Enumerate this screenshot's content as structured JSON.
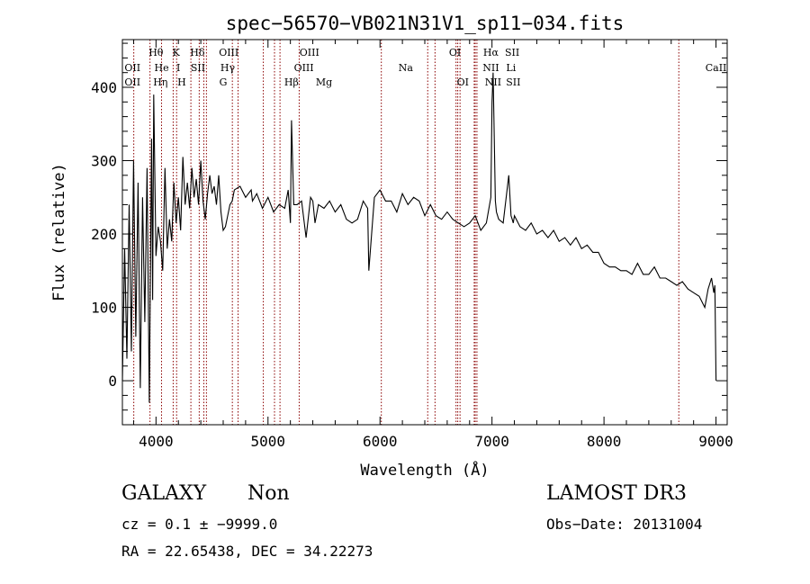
{
  "chart_data": {
    "type": "line",
    "title": "spec−56570−VB021N31V1_sp11−034.fits",
    "xlabel": "Wavelength (Å)",
    "ylabel": "Flux (relative)",
    "xlim": [
      3700,
      9100
    ],
    "ylim": [
      -60,
      465
    ],
    "xticks": [
      4000,
      5000,
      6000,
      7000,
      8000,
      9000
    ],
    "yticks": [
      0,
      100,
      200,
      300,
      400
    ],
    "line_color": "#000000",
    "marker_color": "#8b0000",
    "series": [
      {
        "name": "flux",
        "x": [
          3700,
          3720,
          3740,
          3760,
          3780,
          3800,
          3820,
          3840,
          3860,
          3880,
          3900,
          3920,
          3940,
          3960,
          3970,
          3980,
          4000,
          4020,
          4040,
          4060,
          4080,
          4100,
          4120,
          4140,
          4160,
          4180,
          4200,
          4220,
          4240,
          4260,
          4280,
          4300,
          4320,
          4340,
          4360,
          4380,
          4400,
          4420,
          4440,
          4460,
          4480,
          4500,
          4520,
          4540,
          4560,
          4580,
          4600,
          4620,
          4640,
          4660,
          4680,
          4700,
          4750,
          4800,
          4850,
          4861,
          4900,
          4950,
          5000,
          5050,
          5100,
          5150,
          5180,
          5200,
          5210,
          5230,
          5260,
          5300,
          5340,
          5380,
          5400,
          5420,
          5450,
          5500,
          5550,
          5600,
          5650,
          5700,
          5750,
          5800,
          5850,
          5890,
          5900,
          5950,
          6000,
          6050,
          6100,
          6150,
          6200,
          6250,
          6300,
          6350,
          6400,
          6450,
          6500,
          6550,
          6600,
          6650,
          6700,
          6750,
          6800,
          6850,
          6900,
          6950,
          6990,
          7000,
          7010,
          7020,
          7030,
          7040,
          7060,
          7100,
          7150,
          7170,
          7180,
          7190,
          7200,
          7250,
          7300,
          7350,
          7400,
          7450,
          7500,
          7550,
          7600,
          7650,
          7700,
          7750,
          7800,
          7850,
          7900,
          7950,
          8000,
          8050,
          8100,
          8150,
          8200,
          8250,
          8300,
          8350,
          8400,
          8450,
          8500,
          8550,
          8600,
          8650,
          8700,
          8750,
          8800,
          8850,
          8900,
          8930,
          8960,
          8980,
          8990,
          9000
        ],
        "y": [
          0,
          180,
          30,
          240,
          40,
          300,
          60,
          270,
          -10,
          250,
          80,
          290,
          -30,
          330,
          110,
          390,
          170,
          210,
          190,
          150,
          290,
          180,
          220,
          190,
          270,
          215,
          250,
          205,
          305,
          240,
          270,
          235,
          290,
          250,
          275,
          240,
          300,
          245,
          220,
          255,
          280,
          255,
          265,
          240,
          280,
          230,
          205,
          210,
          225,
          240,
          245,
          260,
          265,
          250,
          260,
          245,
          255,
          235,
          250,
          230,
          240,
          235,
          260,
          215,
          355,
          240,
          240,
          245,
          195,
          250,
          245,
          215,
          240,
          235,
          245,
          230,
          240,
          220,
          215,
          220,
          245,
          235,
          150,
          250,
          260,
          245,
          245,
          230,
          255,
          240,
          250,
          245,
          225,
          240,
          225,
          220,
          230,
          220,
          215,
          210,
          215,
          225,
          205,
          215,
          250,
          380,
          420,
          330,
          245,
          230,
          220,
          215,
          280,
          225,
          220,
          215,
          225,
          210,
          205,
          215,
          200,
          205,
          195,
          205,
          190,
          195,
          185,
          195,
          180,
          185,
          175,
          175,
          160,
          155,
          155,
          150,
          150,
          145,
          160,
          145,
          145,
          155,
          140,
          140,
          135,
          130,
          135,
          125,
          120,
          115,
          100,
          125,
          140,
          120,
          130,
          0
        ]
      }
    ],
    "lines": [
      {
        "wl": 3727,
        "labels": [
          "OII"
        ]
      },
      {
        "wl": 3869,
        "labels": [
          "OII"
        ]
      },
      {
        "wl": 3970,
        "labels": [
          "Hθ",
          "Hη"
        ]
      },
      {
        "wl": 4072,
        "labels": [
          "K",
          "He"
        ]
      },
      {
        "wl": 4102,
        "labels": [
          "Hδ",
          "H"
        ]
      },
      {
        "wl": 4227,
        "labels": [
          "SII"
        ]
      },
      {
        "wl": 4300,
        "labels": [
          "G"
        ]
      },
      {
        "wl": 4340,
        "labels": [
          "Hγ"
        ]
      },
      {
        "wl": 4363,
        "labels": [
          "OIII"
        ]
      },
      {
        "wl": 4590,
        "labels": []
      },
      {
        "wl": 4640,
        "labels": []
      },
      {
        "wl": 4861,
        "labels": [
          "Hβ"
        ]
      },
      {
        "wl": 4959,
        "labels": [
          "OIII"
        ]
      },
      {
        "wl": 5007,
        "labels": [
          "OIII"
        ]
      },
      {
        "wl": 5175,
        "labels": [
          "Mg"
        ]
      },
      {
        "wl": 5894,
        "labels": [
          "Na"
        ]
      },
      {
        "wl": 6300,
        "labels": [
          "OI"
        ]
      },
      {
        "wl": 6364,
        "labels": [
          "OI"
        ]
      },
      {
        "wl": 6548,
        "labels": [
          "NII"
        ]
      },
      {
        "wl": 6563,
        "labels": [
          "Hα"
        ]
      },
      {
        "wl": 6583,
        "labels": [
          "NII"
        ]
      },
      {
        "wl": 6707,
        "labels": [
          "Li"
        ]
      },
      {
        "wl": 6716,
        "labels": [
          "SII"
        ]
      },
      {
        "wl": 6731,
        "labels": [
          "SII"
        ]
      },
      {
        "wl": 8498,
        "labels": [
          "CaII"
        ]
      }
    ],
    "line_labels": [
      {
        "text": "Hθ",
        "wl": 4000,
        "row": 0
      },
      {
        "text": "K",
        "wl": 4180,
        "row": 0
      },
      {
        "text": "Hδ",
        "wl": 4370,
        "row": 0
      },
      {
        "text": "OIII",
        "wl": 4650,
        "row": 0
      },
      {
        "text": "OIII",
        "wl": 5370,
        "row": 0
      },
      {
        "text": "OI",
        "wl": 6670,
        "row": 0
      },
      {
        "text": "Hα",
        "wl": 6990,
        "row": 0
      },
      {
        "text": "SII",
        "wl": 7180,
        "row": 0
      },
      {
        "text": "OII",
        "wl": 3790,
        "row": 1
      },
      {
        "text": "He",
        "wl": 4050,
        "row": 1
      },
      {
        "text": "I",
        "wl": 4200,
        "row": 1
      },
      {
        "text": "SII",
        "wl": 4375,
        "row": 1
      },
      {
        "text": "Hγ",
        "wl": 4640,
        "row": 1
      },
      {
        "text": "OIII",
        "wl": 5320,
        "row": 1
      },
      {
        "text": "Na",
        "wl": 6230,
        "row": 1
      },
      {
        "text": "NII",
        "wl": 6990,
        "row": 1
      },
      {
        "text": "Li",
        "wl": 7170,
        "row": 1
      },
      {
        "text": "CaII",
        "wl": 9000,
        "row": 1
      },
      {
        "text": "OII",
        "wl": 3790,
        "row": 2
      },
      {
        "text": "Hη",
        "wl": 4040,
        "row": 2
      },
      {
        "text": "H",
        "wl": 4230,
        "row": 2
      },
      {
        "text": "G",
        "wl": 4600,
        "row": 2
      },
      {
        "text": "Hβ",
        "wl": 5210,
        "row": 2
      },
      {
        "text": "Mg",
        "wl": 5500,
        "row": 2
      },
      {
        "text": "OI",
        "wl": 6740,
        "row": 2
      },
      {
        "text": "NII",
        "wl": 7010,
        "row": 2
      },
      {
        "text": "SII",
        "wl": 7190,
        "row": 2
      }
    ]
  },
  "footer": {
    "class": "GALAXY",
    "subclass": "Non",
    "cz": "cz = 0.1 ± −9999.0",
    "coords": "RA =  22.65438, DEC =  34.22273",
    "survey": "LAMOST DR3",
    "obs_date": "Obs−Date: 20131004"
  }
}
